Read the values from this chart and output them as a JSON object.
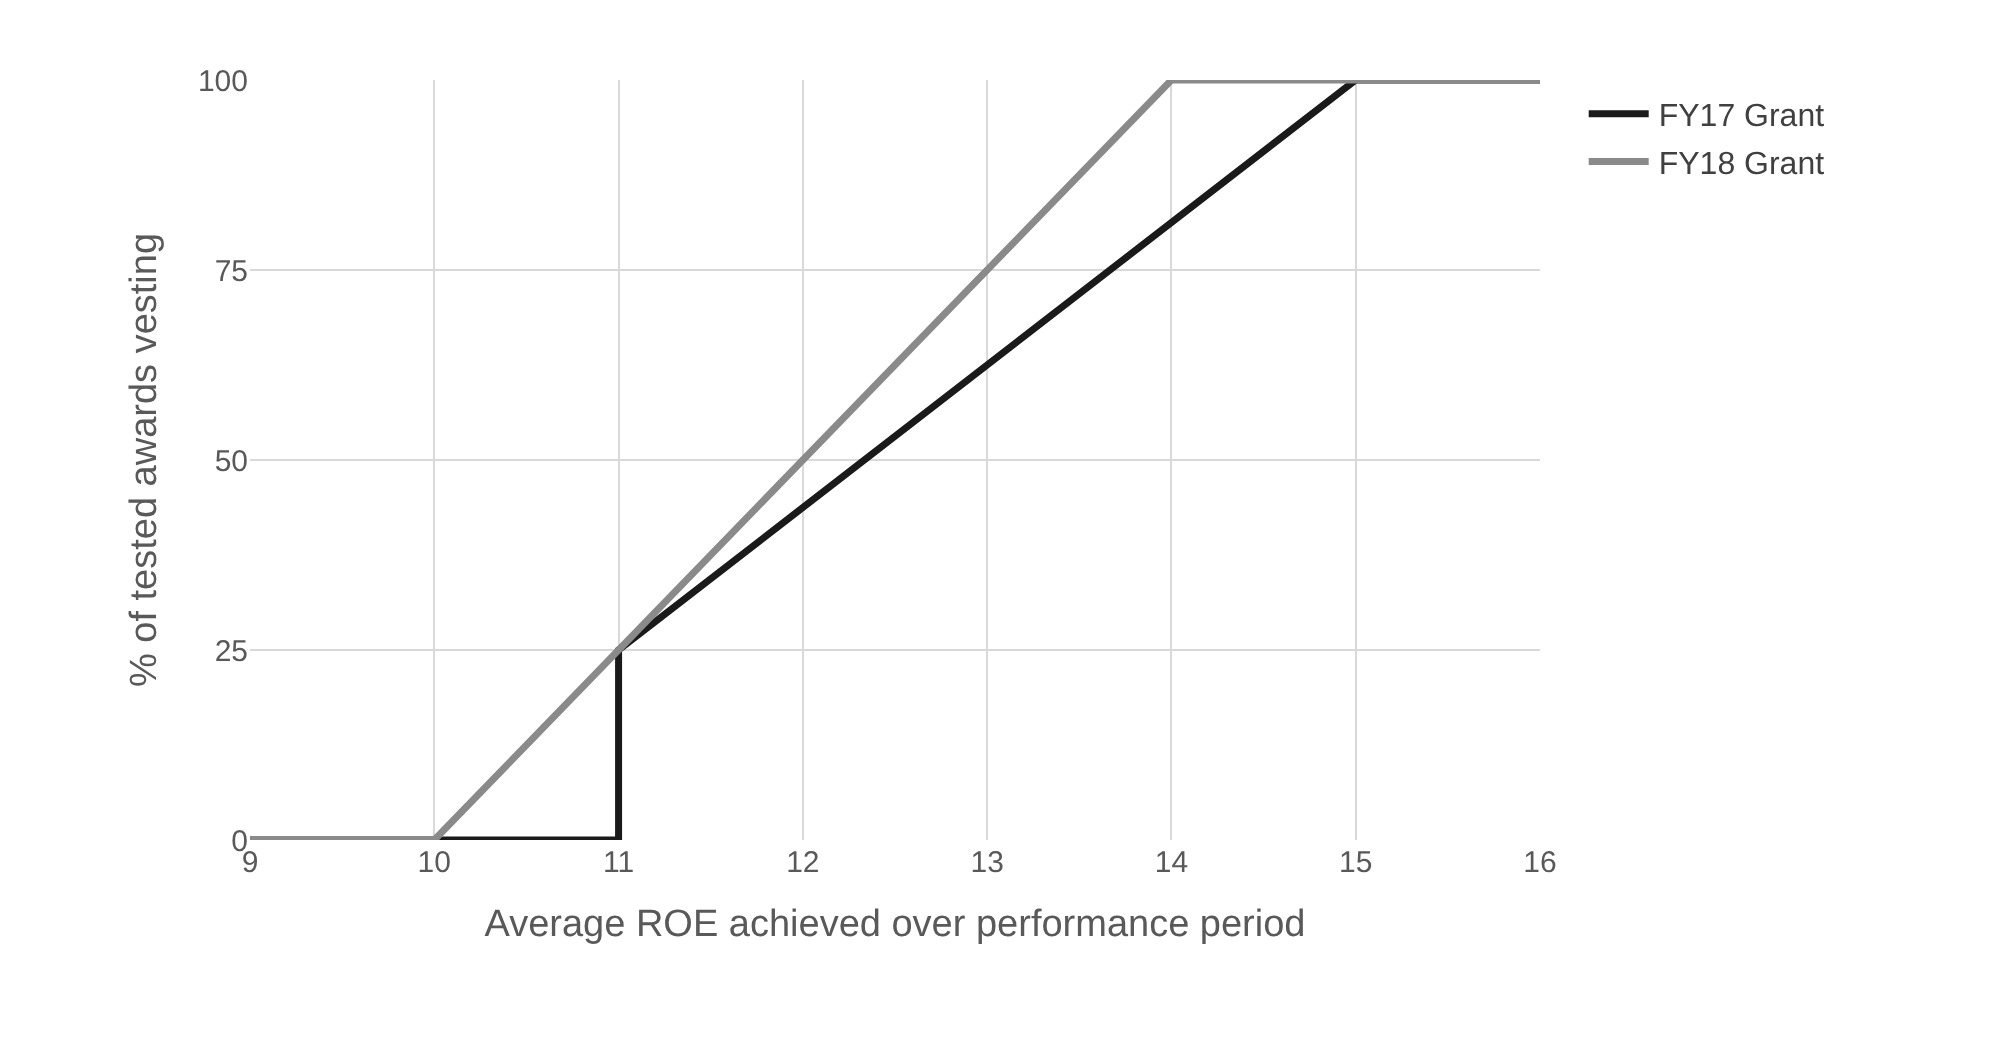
{
  "chart_data": {
    "type": "line",
    "xlabel": "Average ROE achieved over performance period",
    "ylabel": "% of tested awards vesting",
    "series": [
      {
        "name": "FY17 Grant",
        "color": "#1a1a1a",
        "x": [
          9,
          10,
          11,
          11,
          15,
          16
        ],
        "values": [
          0,
          0,
          0,
          25,
          100,
          100
        ]
      },
      {
        "name": "FY18 Grant",
        "color": "#8a8a8a",
        "x": [
          9,
          10,
          14,
          16
        ],
        "values": [
          0,
          0,
          100,
          100
        ]
      }
    ],
    "xlim": [
      9,
      16
    ],
    "xticks": [
      9,
      10,
      11,
      12,
      13,
      14,
      15,
      16
    ],
    "ylim": [
      0,
      100
    ],
    "yticks": [
      0,
      25,
      50,
      75,
      100
    ],
    "grid": true,
    "legend": "top right",
    "marker": "none",
    "line_style": "solid"
  }
}
